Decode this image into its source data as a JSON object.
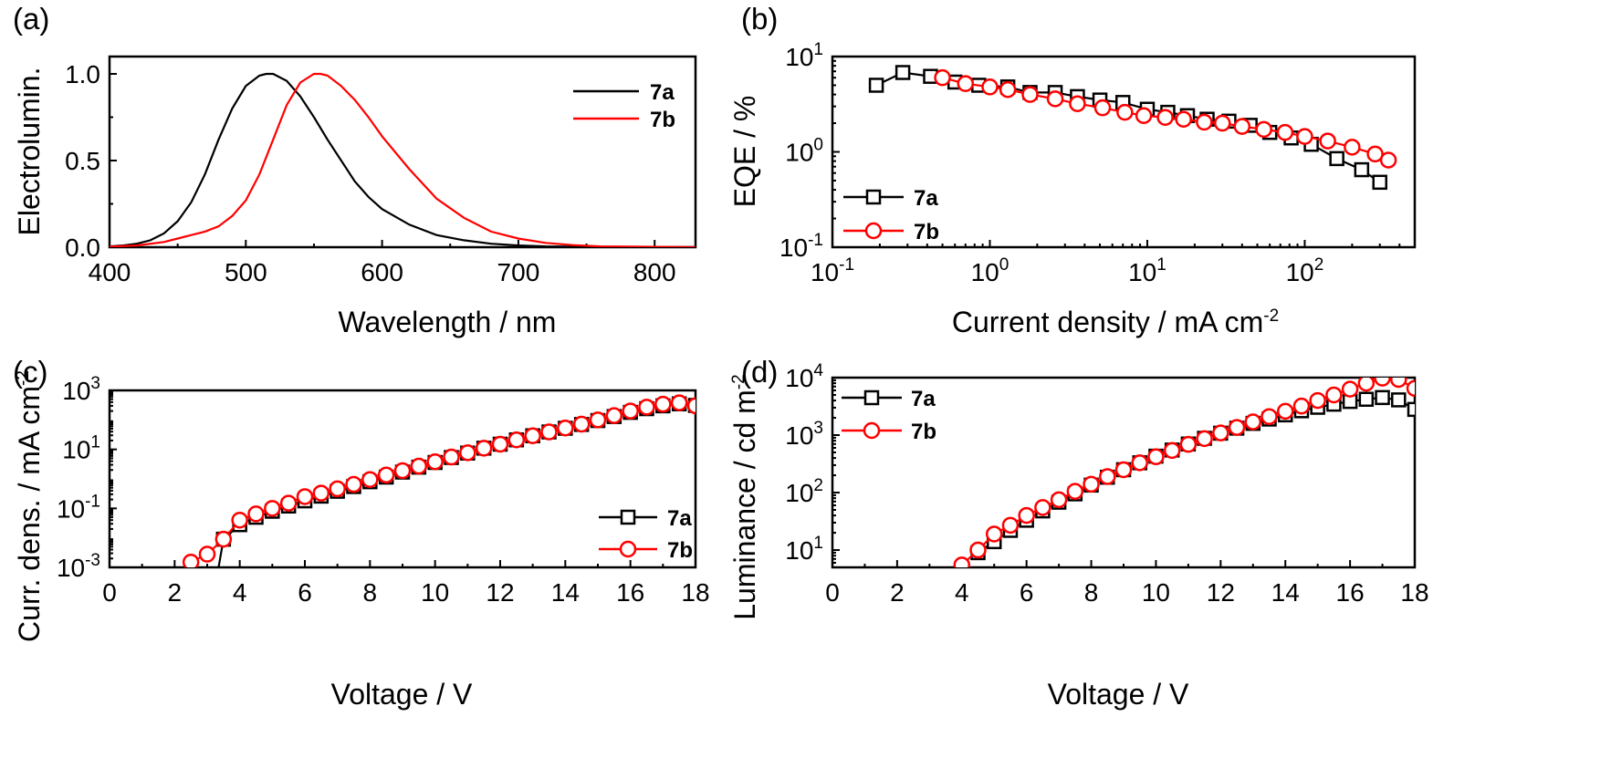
{
  "colors": {
    "7a": "#000000",
    "7b": "#ff0000"
  },
  "chart_data": [
    {
      "panel": "(a)",
      "type": "line",
      "xlabel": "Wavelength / nm",
      "ylabel": "Electrolumin.",
      "xlim": [
        400,
        830
      ],
      "ylim": [
        0,
        1.1
      ],
      "xticks": [
        "400",
        "500",
        "600",
        "700",
        "800"
      ],
      "yticks": [
        "0.0",
        "0.5",
        "1.0"
      ],
      "legend_position": "top-right",
      "series": [
        {
          "name": "7a",
          "x": [
            400,
            410,
            420,
            430,
            440,
            450,
            460,
            470,
            480,
            490,
            500,
            510,
            515,
            520,
            530,
            540,
            550,
            560,
            570,
            580,
            590,
            600,
            620,
            640,
            660,
            680,
            700,
            720,
            760,
            800,
            830
          ],
          "y": [
            0.005,
            0.01,
            0.02,
            0.04,
            0.08,
            0.15,
            0.26,
            0.42,
            0.62,
            0.8,
            0.93,
            0.99,
            1.0,
            1.0,
            0.96,
            0.87,
            0.75,
            0.62,
            0.5,
            0.38,
            0.29,
            0.22,
            0.13,
            0.07,
            0.04,
            0.02,
            0.01,
            0.005,
            0.002,
            0.0,
            0.0
          ]
        },
        {
          "name": "7b",
          "x": [
            400,
            420,
            440,
            450,
            460,
            470,
            480,
            490,
            500,
            510,
            520,
            530,
            540,
            550,
            555,
            560,
            570,
            580,
            590,
            600,
            620,
            640,
            660,
            680,
            700,
            720,
            740,
            760,
            800,
            830
          ],
          "y": [
            0.003,
            0.01,
            0.03,
            0.05,
            0.07,
            0.09,
            0.12,
            0.18,
            0.27,
            0.42,
            0.62,
            0.82,
            0.95,
            1.0,
            1.0,
            0.99,
            0.93,
            0.85,
            0.75,
            0.64,
            0.45,
            0.28,
            0.17,
            0.09,
            0.05,
            0.025,
            0.012,
            0.005,
            0.002,
            0.0
          ]
        }
      ]
    },
    {
      "panel": "(b)",
      "type": "scatter",
      "xlabel": "Current density / mA cm",
      "xlabel_sup": "-2",
      "ylabel": "EQE / %",
      "x_scale": "log",
      "y_scale": "log",
      "xlim": [
        0.1,
        500
      ],
      "ylim": [
        0.1,
        10
      ],
      "xticks": [
        {
          "base": "10",
          "exp": "-1"
        },
        {
          "base": "10",
          "exp": "0"
        },
        {
          "base": "10",
          "exp": "1"
        },
        {
          "base": "10",
          "exp": "2"
        }
      ],
      "yticks": [
        {
          "base": "10",
          "exp": "-1"
        },
        {
          "base": "10",
          "exp": "0"
        },
        {
          "base": "10",
          "exp": "1"
        }
      ],
      "legend_position": "bottom-left",
      "series": [
        {
          "name": "7a",
          "marker": "square",
          "x": [
            0.19,
            0.28,
            0.42,
            0.6,
            0.85,
            1.3,
            1.8,
            2.6,
            3.6,
            5,
            7,
            10,
            13.5,
            18,
            24,
            33,
            45,
            60,
            82,
            110,
            160,
            230,
            300
          ],
          "y": [
            5.0,
            6.8,
            6.2,
            5.4,
            5.0,
            4.8,
            4.2,
            4.2,
            3.8,
            3.5,
            3.3,
            2.8,
            2.6,
            2.4,
            2.2,
            2.1,
            1.9,
            1.6,
            1.4,
            1.2,
            0.85,
            0.65,
            0.48
          ]
        },
        {
          "name": "7b",
          "marker": "circle",
          "x": [
            0.5,
            0.7,
            1.0,
            1.3,
            1.8,
            2.6,
            3.6,
            5.2,
            7.2,
            9.5,
            13,
            17,
            23,
            30,
            40,
            55,
            75,
            100,
            140,
            200,
            280,
            340
          ],
          "y": [
            6.0,
            5.2,
            4.8,
            4.5,
            4.0,
            3.6,
            3.2,
            2.9,
            2.6,
            2.4,
            2.3,
            2.2,
            2.05,
            2.0,
            1.85,
            1.72,
            1.6,
            1.45,
            1.3,
            1.12,
            0.95,
            0.82
          ]
        }
      ]
    },
    {
      "panel": "(c)",
      "type": "scatter",
      "xlabel": "Voltage / V",
      "ylabel": "Curr. dens. / mA cm",
      "ylabel_sup": "-2",
      "y_scale": "log",
      "xlim": [
        0,
        18
      ],
      "ylim": [
        0.001,
        1000
      ],
      "xticks": [
        "0",
        "2",
        "4",
        "6",
        "8",
        "10",
        "12",
        "14",
        "16",
        "18"
      ],
      "yticks": [
        {
          "base": "10",
          "exp": "-3"
        },
        {
          "base": "10",
          "exp": "-1"
        },
        {
          "base": "10",
          "exp": "1"
        },
        {
          "base": "10",
          "exp": "3"
        }
      ],
      "legend_position": "bottom-right",
      "series": [
        {
          "name": "7a",
          "marker": "square",
          "line_x": [
            3.35,
            3.5
          ],
          "line_y": [
            0.001,
            0.009
          ],
          "x": [
            3.5,
            4.0,
            4.5,
            5.0,
            5.5,
            6.0,
            6.5,
            7.0,
            7.5,
            8.0,
            8.5,
            9.0,
            9.5,
            10.0,
            10.5,
            11.0,
            11.5,
            12.0,
            12.5,
            13.0,
            13.5,
            14.0,
            14.5,
            15.0,
            15.5,
            16.0,
            16.5,
            17.0,
            17.5,
            18.0
          ],
          "y": [
            0.009,
            0.028,
            0.05,
            0.08,
            0.12,
            0.18,
            0.26,
            0.38,
            0.55,
            0.8,
            1.15,
            1.7,
            2.5,
            3.6,
            5.3,
            7.5,
            11,
            15,
            21,
            29,
            39,
            52,
            70,
            95,
            130,
            180,
            240,
            300,
            350,
            310
          ]
        },
        {
          "name": "7b",
          "marker": "circle",
          "x": [
            2.5,
            3.0,
            3.5,
            4.0,
            4.5,
            5.0,
            5.5,
            6.0,
            6.5,
            7.0,
            7.5,
            8.0,
            8.5,
            9.0,
            9.5,
            10.0,
            10.5,
            11.0,
            11.5,
            12.0,
            12.5,
            13.0,
            13.5,
            14.0,
            14.5,
            15.0,
            15.5,
            16.0,
            16.5,
            17.0,
            17.5,
            18.0
          ],
          "y": [
            0.0015,
            0.0028,
            0.009,
            0.04,
            0.065,
            0.1,
            0.15,
            0.25,
            0.33,
            0.46,
            0.65,
            0.95,
            1.35,
            1.9,
            2.7,
            3.8,
            5.5,
            7.7,
            11,
            15,
            21,
            29,
            39,
            53,
            72,
            100,
            140,
            200,
            270,
            340,
            380,
            300
          ]
        }
      ]
    },
    {
      "panel": "(d)",
      "type": "scatter",
      "xlabel": "Voltage / V",
      "ylabel": "Luminance / cd m",
      "ylabel_sup": "-2",
      "y_scale": "log",
      "xlim": [
        0,
        18
      ],
      "ylim": [
        5,
        10000
      ],
      "xticks": [
        "0",
        "2",
        "4",
        "6",
        "8",
        "10",
        "12",
        "14",
        "16",
        "18"
      ],
      "yticks": [
        {
          "base": "10",
          "exp": "1"
        },
        {
          "base": "10",
          "exp": "2"
        },
        {
          "base": "10",
          "exp": "3"
        },
        {
          "base": "10",
          "exp": "4"
        }
      ],
      "legend_position": "top-left",
      "series": [
        {
          "name": "7a",
          "marker": "square",
          "x": [
            4.5,
            5.0,
            5.5,
            6.0,
            6.5,
            7.0,
            7.5,
            8.0,
            8.5,
            9.0,
            9.5,
            10.0,
            10.5,
            11.0,
            11.5,
            12.0,
            12.5,
            13.0,
            13.5,
            14.0,
            14.5,
            15.0,
            15.5,
            16.0,
            16.5,
            17.0,
            17.5,
            18.0
          ],
          "y": [
            9,
            14,
            22,
            33,
            48,
            68,
            95,
            135,
            185,
            250,
            330,
            430,
            550,
            700,
            880,
            1080,
            1320,
            1600,
            1900,
            2250,
            2650,
            3050,
            3450,
            3850,
            4200,
            4500,
            4100,
            2800
          ]
        },
        {
          "name": "7b",
          "marker": "circle",
          "x": [
            4.0,
            4.5,
            5.0,
            5.5,
            6.0,
            6.5,
            7.0,
            7.5,
            8.0,
            8.5,
            9.0,
            9.5,
            10.0,
            10.5,
            11.0,
            11.5,
            12.0,
            12.5,
            13.0,
            13.5,
            14.0,
            14.5,
            15.0,
            15.5,
            16.0,
            16.5,
            17.0,
            17.5,
            18.0
          ],
          "y": [
            5.5,
            10,
            19,
            27,
            40,
            55,
            75,
            105,
            140,
            190,
            250,
            330,
            420,
            540,
            690,
            870,
            1090,
            1360,
            1700,
            2100,
            2600,
            3200,
            4000,
            5000,
            6300,
            8000,
            9800,
            9300,
            6500
          ]
        }
      ]
    }
  ]
}
